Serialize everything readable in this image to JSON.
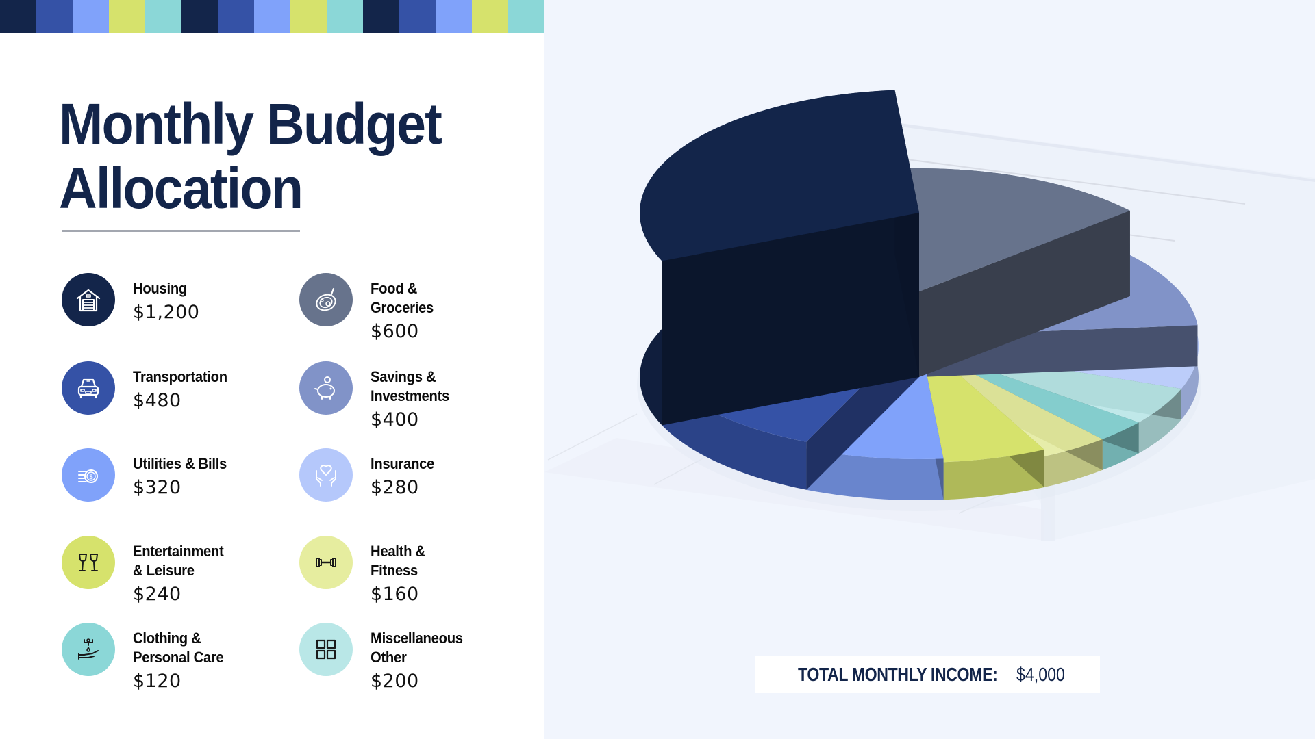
{
  "header": {
    "title_line1": "Monthly Budget",
    "title_line2": "Allocation"
  },
  "stripe_colors": [
    "#13254A",
    "#3552A6",
    "#80A2FA",
    "#D6E26C",
    "#8BD7D7",
    "#13254A",
    "#3552A6",
    "#80A2FA",
    "#D6E26C",
    "#8BD7D7",
    "#13254A",
    "#3552A6",
    "#80A2FA",
    "#D6E26C",
    "#8BD7D7"
  ],
  "items": [
    {
      "label": "Housing",
      "value": "$1,200",
      "icon": "garage-house-icon",
      "color": "#13254A",
      "icon_stroke": "#ffffff"
    },
    {
      "label": "Food & Groceries",
      "label_lines": [
        "Food &",
        "Groceries"
      ],
      "value": "$600",
      "icon": "plate-food-icon",
      "color": "#67738C",
      "icon_stroke": "#ffffff"
    },
    {
      "label": "Transportation",
      "value": "$480",
      "icon": "car-icon",
      "color": "#3552A6",
      "icon_stroke": "#ffffff"
    },
    {
      "label": "Savings & Investments",
      "label_lines": [
        "Savings &",
        "Investments"
      ],
      "value": "$400",
      "icon": "piggy-bank-icon",
      "color": "#8193C8",
      "icon_stroke": "#ffffff"
    },
    {
      "label": "Utilities & Bills",
      "value": "$320",
      "icon": "coins-dollar-icon",
      "color": "#80A2FA",
      "icon_stroke": "#ffffff"
    },
    {
      "label": "Insurance",
      "value": "$280",
      "icon": "hands-heart-icon",
      "color": "#B5C8FB",
      "icon_stroke": "#ffffff"
    },
    {
      "label": "Entertainment & Leisure",
      "label_lines": [
        "Entertainment",
        "& Leisure"
      ],
      "value": "$240",
      "icon": "wine-glasses-icon",
      "color": "#D6E26C",
      "icon_stroke": "#1a1a1a"
    },
    {
      "label": "Health & Fitness",
      "label_lines": [
        "Health &",
        "Fitness"
      ],
      "value": "$160",
      "icon": "dumbbell-icon",
      "color": "#E6ED9F",
      "icon_stroke": "#1a1a1a"
    },
    {
      "label": "Clothing & Personal Care",
      "label_lines": [
        "Clothing &",
        "Personal Care"
      ],
      "value": "$120",
      "icon": "hand-soap-icon",
      "color": "#8BD7D7",
      "icon_stroke": "#1a1a1a"
    },
    {
      "label": "Miscellaneous Other",
      "label_lines": [
        "Miscellaneous",
        "Other"
      ],
      "value": "$200",
      "icon": "grid-squares-icon",
      "color": "#B9E7E7",
      "icon_stroke": "#1a1a1a"
    }
  ],
  "total": {
    "label": "TOTAL MONTHLY INCOME:",
    "value": "$4,000"
  },
  "chart_data": {
    "type": "pie",
    "title": "Monthly Budget Allocation",
    "style": "3d-exploded-height",
    "categories": [
      "Housing",
      "Food & Groceries",
      "Transportation",
      "Savings & Investments",
      "Utilities & Bills",
      "Insurance",
      "Entertainment & Leisure",
      "Health & Fitness",
      "Clothing & Personal Care",
      "Miscellaneous Other"
    ],
    "values": [
      1200,
      600,
      480,
      400,
      320,
      280,
      240,
      160,
      120,
      200
    ],
    "total": 4000,
    "colors": [
      "#13254A",
      "#67738C",
      "#3552A6",
      "#8193C8",
      "#80A2FA",
      "#B5C8FB",
      "#D6E26C",
      "#E6ED9F",
      "#8BD7D7",
      "#B9E7E7"
    ],
    "legend_position": "left",
    "grid": true
  }
}
